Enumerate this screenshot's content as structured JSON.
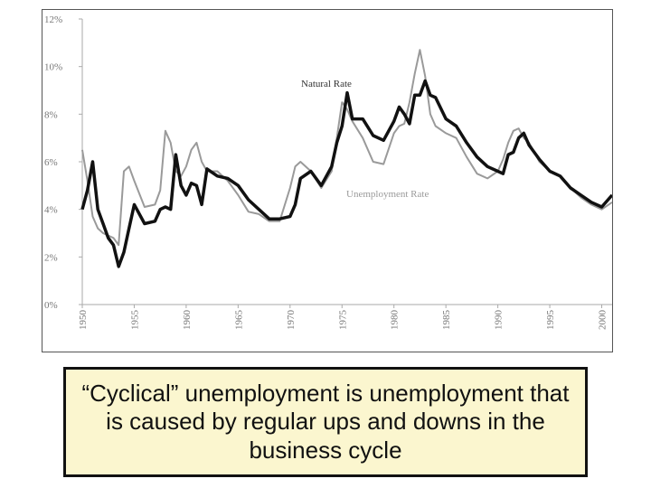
{
  "caption": "“Cyclical” unemployment is unemployment that is caused by regular ups and downs in the business cycle",
  "chart_data": {
    "type": "line",
    "title": "",
    "xlabel": "",
    "ylabel": "",
    "xlim": [
      1950,
      2001
    ],
    "ylim": [
      0,
      12
    ],
    "y_ticks": [
      "0%",
      "2%",
      "4%",
      "6%",
      "8%",
      "10%",
      "12%"
    ],
    "x_ticks": [
      "1950",
      "1955",
      "1960",
      "1965",
      "1970",
      "1975",
      "1980",
      "1985",
      "1990",
      "1995",
      "2000"
    ],
    "grid": false,
    "series": [
      {
        "name": "Natural Rate",
        "color": "#111111",
        "x": [
          1950,
          1950.5,
          1951,
          1951.5,
          1952,
          1952.5,
          1953,
          1953.5,
          1954,
          1954.5,
          1955,
          1956,
          1957,
          1957.5,
          1958,
          1958.5,
          1959,
          1959.5,
          1960,
          1960.5,
          1961,
          1961.5,
          1962,
          1963,
          1964,
          1965,
          1966,
          1967,
          1968,
          1969,
          1970,
          1970.5,
          1971,
          1972,
          1973,
          1974,
          1974.5,
          1975,
          1975.5,
          1976,
          1977,
          1978,
          1979,
          1980,
          1980.5,
          1981,
          1981.5,
          1982,
          1982.5,
          1983,
          1983.5,
          1984,
          1985,
          1986,
          1987,
          1988,
          1989,
          1990,
          1990.5,
          1991,
          1991.5,
          1992,
          1992.5,
          1993,
          1994,
          1995,
          1996,
          1997,
          1998,
          1999,
          2000,
          2001
        ],
        "y": [
          4.0,
          4.8,
          6.0,
          4.0,
          3.4,
          2.8,
          2.5,
          1.6,
          2.2,
          3.2,
          4.2,
          3.4,
          3.5,
          4.0,
          4.1,
          4.0,
          6.3,
          5.0,
          4.6,
          5.1,
          5.0,
          4.2,
          5.7,
          5.4,
          5.3,
          5.0,
          4.4,
          4.0,
          3.6,
          3.6,
          3.7,
          4.2,
          5.3,
          5.6,
          5.0,
          5.8,
          6.8,
          7.5,
          8.9,
          7.8,
          7.8,
          7.1,
          6.9,
          7.7,
          8.3,
          8.0,
          7.6,
          8.8,
          8.8,
          9.4,
          8.8,
          8.7,
          7.8,
          7.5,
          6.8,
          6.2,
          5.8,
          5.6,
          5.5,
          6.3,
          6.4,
          7.0,
          7.2,
          6.7,
          6.1,
          5.6,
          5.4,
          4.9,
          4.6,
          4.3,
          4.1,
          4.6
        ]
      },
      {
        "name": "Unemployment Rate",
        "color": "#9a9a9a",
        "x": [
          1950,
          1950.5,
          1951,
          1951.5,
          1952,
          1952.5,
          1953,
          1953.5,
          1954,
          1954.5,
          1955,
          1956,
          1957,
          1957.5,
          1958,
          1958.5,
          1959,
          1959.5,
          1960,
          1960.5,
          1961,
          1961.5,
          1962,
          1963,
          1964,
          1965,
          1966,
          1967,
          1968,
          1969,
          1970,
          1970.5,
          1971,
          1972,
          1973,
          1974,
          1974.5,
          1975,
          1975.5,
          1976,
          1977,
          1978,
          1979,
          1980,
          1980.5,
          1981,
          1981.5,
          1982,
          1982.5,
          1983,
          1983.5,
          1984,
          1985,
          1986,
          1987,
          1988,
          1989,
          1990,
          1990.5,
          1991,
          1991.5,
          1992,
          1992.5,
          1993,
          1994,
          1995,
          1996,
          1997,
          1998,
          1999,
          2000,
          2001
        ],
        "y": [
          6.5,
          5.2,
          3.7,
          3.2,
          3.0,
          2.9,
          2.8,
          2.5,
          5.6,
          5.8,
          5.2,
          4.1,
          4.2,
          4.8,
          7.3,
          6.8,
          5.6,
          5.4,
          5.8,
          6.5,
          6.8,
          6.0,
          5.6,
          5.6,
          5.2,
          4.6,
          3.9,
          3.8,
          3.5,
          3.5,
          4.9,
          5.8,
          6.0,
          5.6,
          4.9,
          5.6,
          7.0,
          8.5,
          8.2,
          7.7,
          7.0,
          6.0,
          5.9,
          7.2,
          7.5,
          7.6,
          8.5,
          9.7,
          10.7,
          9.6,
          8.0,
          7.5,
          7.2,
          7.0,
          6.2,
          5.5,
          5.3,
          5.6,
          6.1,
          6.8,
          7.3,
          7.4,
          7.0,
          6.8,
          6.0,
          5.6,
          5.4,
          4.9,
          4.5,
          4.2,
          4.0,
          4.3
        ]
      }
    ]
  }
}
